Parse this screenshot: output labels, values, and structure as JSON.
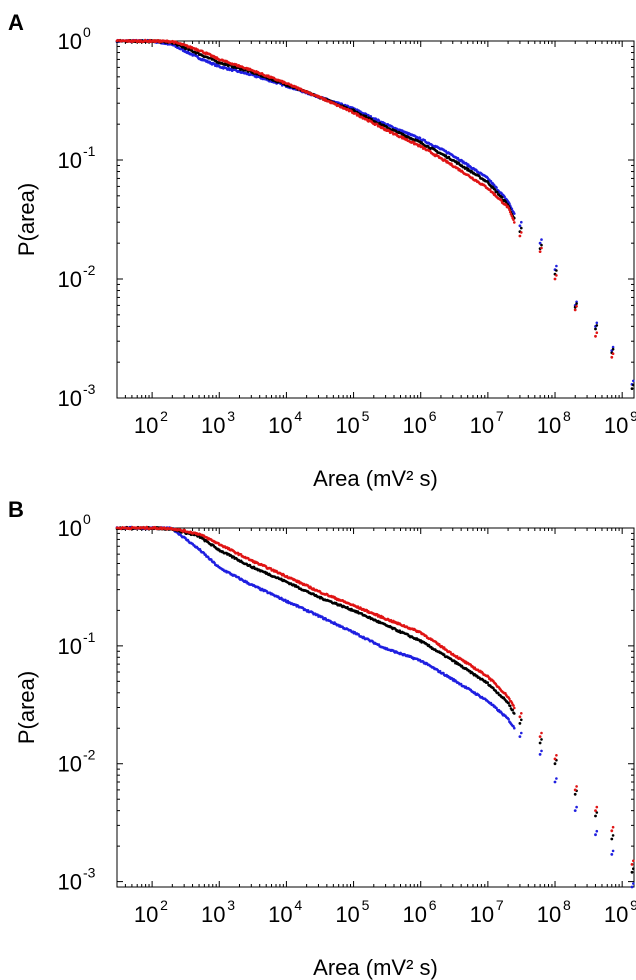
{
  "colors": {
    "blue": "#1f1fe0",
    "black": "#000000",
    "red": "#e01414"
  },
  "chart_data": [
    {
      "panel": "A",
      "type": "scatter",
      "xscale": "log",
      "yscale": "log",
      "xlim": [
        30,
        1500000000
      ],
      "ylim": [
        0.001,
        1
      ],
      "xlabel": "Area (mV² s)",
      "ylabel": "P(area)",
      "xtick_exponents": [
        2,
        3,
        4,
        5,
        6,
        7,
        8,
        9
      ],
      "ytick_exponents": [
        0,
        -1,
        -2,
        -3
      ],
      "grid": false,
      "series": [
        {
          "color": "blue",
          "x": [
            30,
            100,
            200,
            500,
            1000,
            3000,
            10000,
            30000,
            100000,
            300000,
            1000000,
            3000000,
            10000000,
            20000000,
            30000000,
            60000000,
            100000000,
            200000000,
            400000000,
            700000000,
            1400000000
          ],
          "y": [
            1,
            1,
            0.93,
            0.72,
            0.61,
            0.52,
            0.42,
            0.34,
            0.27,
            0.2,
            0.15,
            0.11,
            0.07,
            0.045,
            0.028,
            0.02,
            0.012,
            0.006,
            0.004,
            0.0025,
            0.0013
          ]
        },
        {
          "color": "black",
          "x": [
            30,
            100,
            200,
            500,
            1000,
            3000,
            10000,
            30000,
            100000,
            300000,
            1000000,
            3000000,
            10000000,
            20000000,
            30000000,
            60000000,
            100000000,
            200000000,
            400000000,
            700000000,
            1400000000
          ],
          "y": [
            1,
            1,
            0.97,
            0.78,
            0.66,
            0.55,
            0.43,
            0.34,
            0.26,
            0.19,
            0.14,
            0.1,
            0.065,
            0.042,
            0.025,
            0.018,
            0.011,
            0.0058,
            0.0038,
            0.0024,
            0.0012
          ]
        },
        {
          "color": "red",
          "x": [
            30,
            100,
            200,
            500,
            1000,
            3000,
            10000,
            30000,
            100000,
            300000,
            1000000,
            3000000,
            10000000,
            20000000,
            30000000,
            60000000,
            100000000,
            200000000,
            400000000,
            700000000
          ],
          "y": [
            1,
            1,
            0.99,
            0.84,
            0.7,
            0.57,
            0.44,
            0.34,
            0.25,
            0.18,
            0.13,
            0.09,
            0.058,
            0.04,
            0.023,
            0.017,
            0.01,
            0.0055,
            0.0033,
            0.0022
          ]
        }
      ]
    },
    {
      "panel": "B",
      "type": "scatter",
      "xscale": "log",
      "yscale": "log",
      "xlim": [
        30,
        1500000000
      ],
      "ylim": [
        0.0009,
        1
      ],
      "xlabel": "Area (mV² s)",
      "ylabel": "P(area)",
      "xtick_exponents": [
        2,
        3,
        4,
        5,
        6,
        7,
        8,
        9
      ],
      "ytick_exponents": [
        0,
        -1,
        -2,
        -3
      ],
      "grid": false,
      "series": [
        {
          "color": "blue",
          "x": [
            30,
            100,
            200,
            500,
            1000,
            3000,
            10000,
            30000,
            100000,
            300000,
            1000000,
            3000000,
            10000000,
            20000000,
            30000000,
            60000000,
            100000000,
            200000000,
            400000000,
            700000000,
            1400000000
          ],
          "y": [
            1,
            1,
            0.99,
            0.66,
            0.46,
            0.33,
            0.24,
            0.18,
            0.13,
            0.095,
            0.075,
            0.052,
            0.034,
            0.024,
            0.017,
            0.012,
            0.007,
            0.004,
            0.0025,
            0.0017,
            0.0009
          ]
        },
        {
          "color": "black",
          "x": [
            30,
            100,
            200,
            500,
            1000,
            3000,
            10000,
            30000,
            100000,
            300000,
            1000000,
            3000000,
            10000000,
            20000000,
            30000000,
            60000000,
            100000000,
            200000000,
            400000000,
            700000000,
            1400000000
          ],
          "y": [
            1,
            1,
            0.98,
            0.85,
            0.65,
            0.47,
            0.35,
            0.26,
            0.2,
            0.15,
            0.11,
            0.075,
            0.048,
            0.033,
            0.022,
            0.015,
            0.01,
            0.0055,
            0.0036,
            0.0023,
            0.0012
          ]
        },
        {
          "color": "red",
          "x": [
            30,
            100,
            200,
            500,
            1000,
            3000,
            10000,
            30000,
            100000,
            300000,
            1000000,
            3000000,
            10000000,
            20000000,
            30000000,
            60000000,
            100000000,
            200000000,
            400000000,
            700000000,
            1400000000
          ],
          "y": [
            1,
            1,
            0.99,
            0.89,
            0.73,
            0.53,
            0.39,
            0.29,
            0.22,
            0.17,
            0.13,
            0.085,
            0.055,
            0.037,
            0.025,
            0.017,
            0.011,
            0.006,
            0.004,
            0.0027,
            0.0014
          ]
        }
      ]
    }
  ]
}
